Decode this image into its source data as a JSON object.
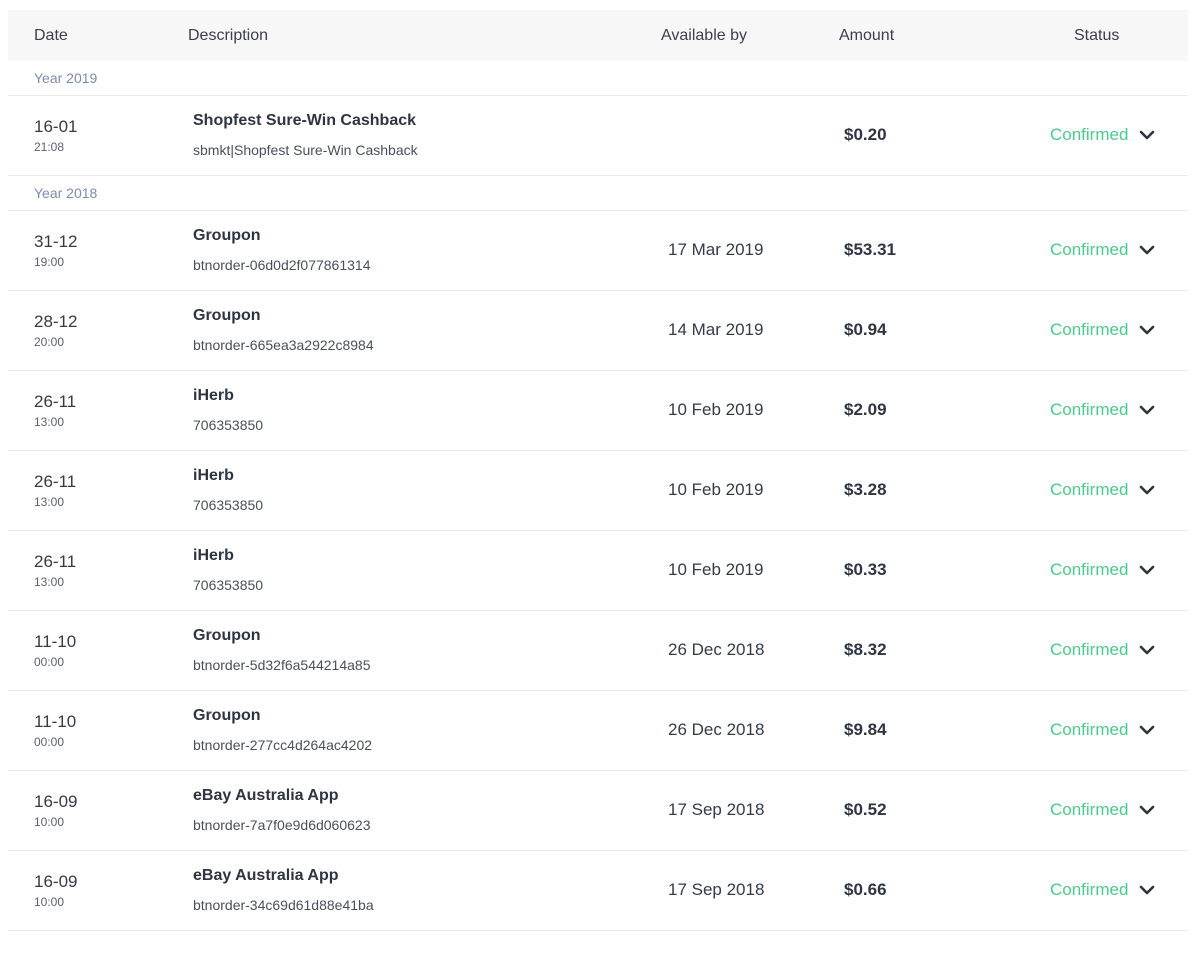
{
  "header": {
    "date": "Date",
    "description": "Description",
    "available_by": "Available by",
    "amount": "Amount",
    "status": "Status"
  },
  "groups": [
    {
      "label": "Year 2019",
      "rows": [
        {
          "day": "16-01",
          "time": "21:08",
          "merchant": "Shopfest Sure-Win Cashback",
          "ref": "sbmkt|Shopfest Sure-Win Cashback",
          "available": "",
          "amount": "$0.20",
          "status": "Confirmed"
        }
      ]
    },
    {
      "label": "Year 2018",
      "rows": [
        {
          "day": "31-12",
          "time": "19:00",
          "merchant": "Groupon",
          "ref": "btnorder-06d0d2f077861314",
          "available": "17 Mar 2019",
          "amount": "$53.31",
          "status": "Confirmed"
        },
        {
          "day": "28-12",
          "time": "20:00",
          "merchant": "Groupon",
          "ref": "btnorder-665ea3a2922c8984",
          "available": "14 Mar 2019",
          "amount": "$0.94",
          "status": "Confirmed"
        },
        {
          "day": "26-11",
          "time": "13:00",
          "merchant": "iHerb",
          "ref": "706353850",
          "available": "10 Feb 2019",
          "amount": "$2.09",
          "status": "Confirmed"
        },
        {
          "day": "26-11",
          "time": "13:00",
          "merchant": "iHerb",
          "ref": "706353850",
          "available": "10 Feb 2019",
          "amount": "$3.28",
          "status": "Confirmed"
        },
        {
          "day": "26-11",
          "time": "13:00",
          "merchant": "iHerb",
          "ref": "706353850",
          "available": "10 Feb 2019",
          "amount": "$0.33",
          "status": "Confirmed"
        },
        {
          "day": "11-10",
          "time": "00:00",
          "merchant": "Groupon",
          "ref": "btnorder-5d32f6a544214a85",
          "available": "26 Dec 2018",
          "amount": "$8.32",
          "status": "Confirmed"
        },
        {
          "day": "11-10",
          "time": "00:00",
          "merchant": "Groupon",
          "ref": "btnorder-277cc4d264ac4202",
          "available": "26 Dec 2018",
          "amount": "$9.84",
          "status": "Confirmed"
        },
        {
          "day": "16-09",
          "time": "10:00",
          "merchant": "eBay Australia App",
          "ref": "btnorder-7a7f0e9d6d060623",
          "available": "17 Sep 2018",
          "amount": "$0.52",
          "status": "Confirmed"
        },
        {
          "day": "16-09",
          "time": "10:00",
          "merchant": "eBay Australia App",
          "ref": "btnorder-34c69d61d88e41ba",
          "available": "17 Sep 2018",
          "amount": "$0.66",
          "status": "Confirmed"
        }
      ]
    }
  ],
  "icons": {
    "expand": "chevron-down-icon"
  },
  "colors": {
    "confirmed": "#4cc98c",
    "year_label": "#7d8bb0",
    "header_bg": "#f7f7f8"
  }
}
